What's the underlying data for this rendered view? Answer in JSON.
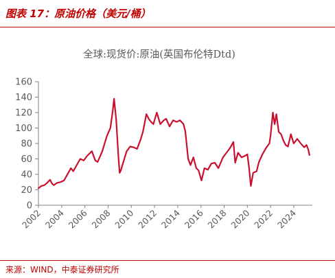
{
  "figure": {
    "title": "图表 17：原油价格（美元/桶）",
    "source": "来源：WIND，中泰证券研究所"
  },
  "colors": {
    "accent": "#c00000",
    "series": "#c8102e",
    "axis": "#808080",
    "text": "#595959"
  },
  "chart_data": {
    "type": "line",
    "title": "全球:现货价:原油(英国布伦特Dtd)",
    "xlabel": "",
    "ylabel": "",
    "ylim": [
      0,
      160
    ],
    "yticks": [
      0,
      20,
      40,
      60,
      80,
      100,
      120,
      140,
      160
    ],
    "xlim": [
      2002,
      2025.6
    ],
    "xticks": [
      "2002",
      "2004",
      "2006",
      "2008",
      "2010",
      "2012",
      "2014",
      "2016",
      "2018",
      "2020",
      "2022",
      "2024"
    ],
    "grid": false,
    "legend": "none",
    "series": [
      {
        "values_x": [
          2002.0,
          2002.25,
          2002.5,
          2002.75,
          2003.0,
          2003.17,
          2003.33,
          2003.6,
          2003.9,
          2004.2,
          2004.5,
          2004.8,
          2005.0,
          2005.3,
          2005.6,
          2005.9,
          2006.2,
          2006.6,
          2006.9,
          2007.1,
          2007.5,
          2007.9,
          2008.2,
          2008.4,
          2008.52,
          2008.7,
          2008.9,
          2009.0,
          2009.1,
          2009.3,
          2009.6,
          2009.9,
          2010.2,
          2010.5,
          2010.8,
          2011.0,
          2011.3,
          2011.5,
          2011.7,
          2011.9,
          2012.2,
          2012.5,
          2012.8,
          2013.0,
          2013.3,
          2013.6,
          2013.9,
          2014.2,
          2014.5,
          2014.65,
          2014.9,
          2015.1,
          2015.35,
          2015.6,
          2015.8,
          2016.05,
          2016.3,
          2016.6,
          2016.9,
          2017.2,
          2017.5,
          2017.9,
          2018.2,
          2018.5,
          2018.8,
          2018.95,
          2019.2,
          2019.5,
          2019.8,
          2020.0,
          2020.15,
          2020.3,
          2020.5,
          2020.8,
          2021.0,
          2021.3,
          2021.6,
          2021.9,
          2022.0,
          2022.2,
          2022.35,
          2022.5,
          2022.7,
          2022.9,
          2023.1,
          2023.3,
          2023.5,
          2023.75,
          2024.0,
          2024.3,
          2024.6,
          2024.9,
          2025.1,
          2025.25,
          2025.35
        ],
        "values": [
          22,
          25,
          26,
          29,
          33,
          28,
          26,
          29,
          30,
          32,
          40,
          48,
          44,
          52,
          60,
          58,
          64,
          70,
          58,
          56,
          70,
          90,
          100,
          122,
          138,
          110,
          60,
          42,
          45,
          55,
          70,
          76,
          75,
          73,
          85,
          95,
          118,
          112,
          108,
          105,
          120,
          105,
          110,
          112,
          102,
          110,
          108,
          110,
          105,
          96,
          60,
          52,
          62,
          48,
          45,
          32,
          48,
          46,
          54,
          55,
          48,
          62,
          68,
          74,
          82,
          55,
          68,
          62,
          64,
          66,
          48,
          25,
          42,
          44,
          56,
          66,
          74,
          80,
          90,
          120,
          105,
          118,
          95,
          92,
          84,
          78,
          76,
          92,
          80,
          86,
          80,
          75,
          78,
          72,
          65
        ]
      }
    ]
  }
}
